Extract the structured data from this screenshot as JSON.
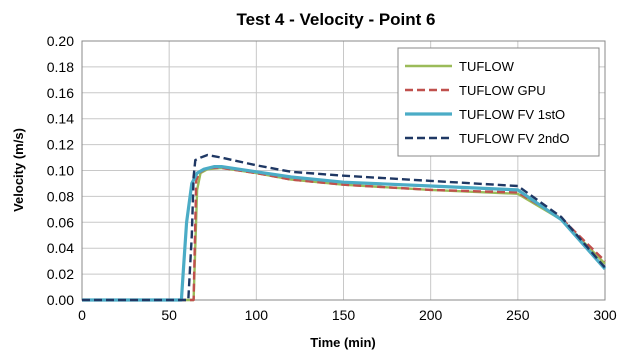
{
  "chart_data": {
    "type": "line",
    "title": "Test 4 - Velocity - Point 6",
    "xlabel": "Time (min)",
    "ylabel": "Velocity (m/s)",
    "xlim": [
      0,
      300
    ],
    "ylim": [
      0,
      0.2
    ],
    "x_ticks": [
      0,
      50,
      100,
      150,
      200,
      250,
      300
    ],
    "y_ticks": [
      0.0,
      0.02,
      0.04,
      0.06,
      0.08,
      0.1,
      0.12,
      0.14,
      0.16,
      0.18,
      0.2
    ],
    "y_tick_labels": [
      "0.00",
      "0.02",
      "0.04",
      "0.06",
      "0.08",
      "0.10",
      "0.12",
      "0.14",
      "0.16",
      "0.18",
      "0.20"
    ],
    "grid": true,
    "legend_position": "top-right",
    "series": [
      {
        "name": "TUFLOW",
        "color": "#9BBB59",
        "dash": "solid",
        "points": [
          [
            0,
            0
          ],
          [
            60,
            0
          ],
          [
            64,
            0
          ],
          [
            66,
            0.085
          ],
          [
            68,
            0.098
          ],
          [
            72,
            0.101
          ],
          [
            80,
            0.102
          ],
          [
            100,
            0.098
          ],
          [
            120,
            0.093
          ],
          [
            150,
            0.089
          ],
          [
            200,
            0.085
          ],
          [
            250,
            0.082
          ],
          [
            275,
            0.062
          ],
          [
            300,
            0.028
          ]
        ]
      },
      {
        "name": "TUFLOW GPU",
        "color": "#C0504D",
        "dash": "dashed",
        "points": [
          [
            0,
            0
          ],
          [
            60,
            0
          ],
          [
            64,
            0
          ],
          [
            65.5,
            0.092
          ],
          [
            67,
            0.098
          ],
          [
            72,
            0.102
          ],
          [
            80,
            0.102
          ],
          [
            100,
            0.098
          ],
          [
            120,
            0.093
          ],
          [
            150,
            0.089
          ],
          [
            200,
            0.085
          ],
          [
            250,
            0.083
          ],
          [
            275,
            0.063
          ],
          [
            300,
            0.03
          ]
        ]
      },
      {
        "name": "TUFLOW FV 1stO",
        "color": "#4BACC6",
        "dash": "solid",
        "points": [
          [
            0,
            0
          ],
          [
            57,
            0
          ],
          [
            58,
            0.02
          ],
          [
            60,
            0.06
          ],
          [
            63,
            0.09
          ],
          [
            66,
            0.098
          ],
          [
            70,
            0.101
          ],
          [
            76,
            0.103
          ],
          [
            80,
            0.103
          ],
          [
            100,
            0.099
          ],
          [
            120,
            0.095
          ],
          [
            150,
            0.091
          ],
          [
            200,
            0.088
          ],
          [
            250,
            0.085
          ],
          [
            275,
            0.062
          ],
          [
            300,
            0.024
          ]
        ]
      },
      {
        "name": "TUFLOW FV 2ndO",
        "color": "#1F3864",
        "dash": "dashed",
        "points": [
          [
            0,
            0
          ],
          [
            61,
            0
          ],
          [
            63,
            0.05
          ],
          [
            64,
            0.095
          ],
          [
            65,
            0.108
          ],
          [
            68,
            0.11
          ],
          [
            72,
            0.112
          ],
          [
            80,
            0.11
          ],
          [
            100,
            0.104
          ],
          [
            120,
            0.099
          ],
          [
            150,
            0.096
          ],
          [
            200,
            0.092
          ],
          [
            250,
            0.088
          ],
          [
            275,
            0.064
          ],
          [
            300,
            0.025
          ]
        ]
      }
    ]
  }
}
